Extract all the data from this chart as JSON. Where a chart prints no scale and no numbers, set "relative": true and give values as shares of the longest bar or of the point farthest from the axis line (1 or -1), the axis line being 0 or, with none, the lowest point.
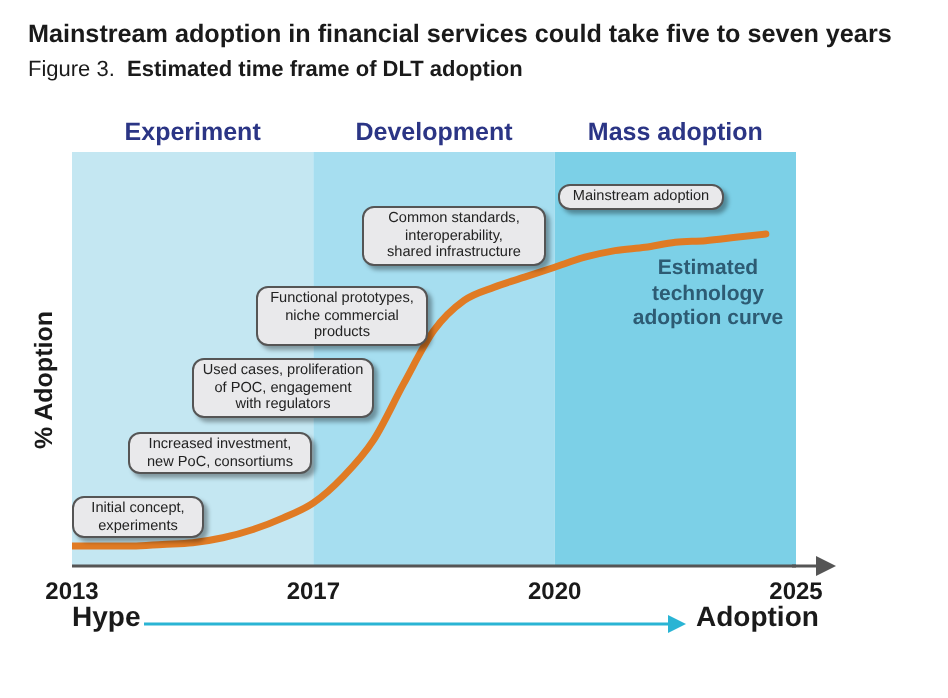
{
  "chart_data": {
    "type": "line",
    "title": "Mainstream adoption in financial services could take five to seven years",
    "subtitle": "Figure 3.  Estimated time frame of DLT adoption",
    "ylabel": "% Adoption",
    "relative": true,
    "categories": [
      "2013",
      null,
      null,
      null,
      null,
      null,
      null,
      null,
      "2017",
      null,
      null,
      null,
      null,
      null,
      null,
      null,
      "2020",
      null,
      null,
      null,
      null,
      null,
      null,
      null,
      "2025"
    ],
    "series": [
      {
        "name": "Estimated technology adoption curve",
        "color": "#e07b24",
        "values": [
          0.06,
          0.06,
          0.06,
          0.065,
          0.07,
          0.085,
          0.11,
          0.145,
          0.19,
          0.27,
          0.38,
          0.55,
          0.71,
          0.8,
          0.84,
          0.87,
          0.9,
          0.93,
          0.95,
          0.96,
          0.975,
          0.98,
          0.99,
          1,
          null
        ]
      }
    ],
    "bands": [
      {
        "axis": "x",
        "from": "2013",
        "to": "2017",
        "label": "Experiment",
        "color": "#c4e7f2"
      },
      {
        "axis": "x",
        "from": "2017",
        "to": "2020",
        "label": "Development",
        "color": "#a6def0"
      },
      {
        "axis": "x",
        "from": "2020",
        "to": "2025",
        "label": "Mass adoption",
        "color": "#7cd0e7"
      }
    ],
    "annotations": [
      "Initial concept,\nexperiments",
      "Increased investment,\nnew PoC, consortiums",
      "Used cases, proliferation\nof POC, engagement\nwith regulators",
      "Functional prototypes,\nniche commercial\nproducts",
      "Common standards,\ninteroperability,\nshared infrastructure",
      "Mainstream adoption",
      "Hype",
      "Adoption"
    ],
    "marker": "none",
    "line_style": "solid"
  }
}
